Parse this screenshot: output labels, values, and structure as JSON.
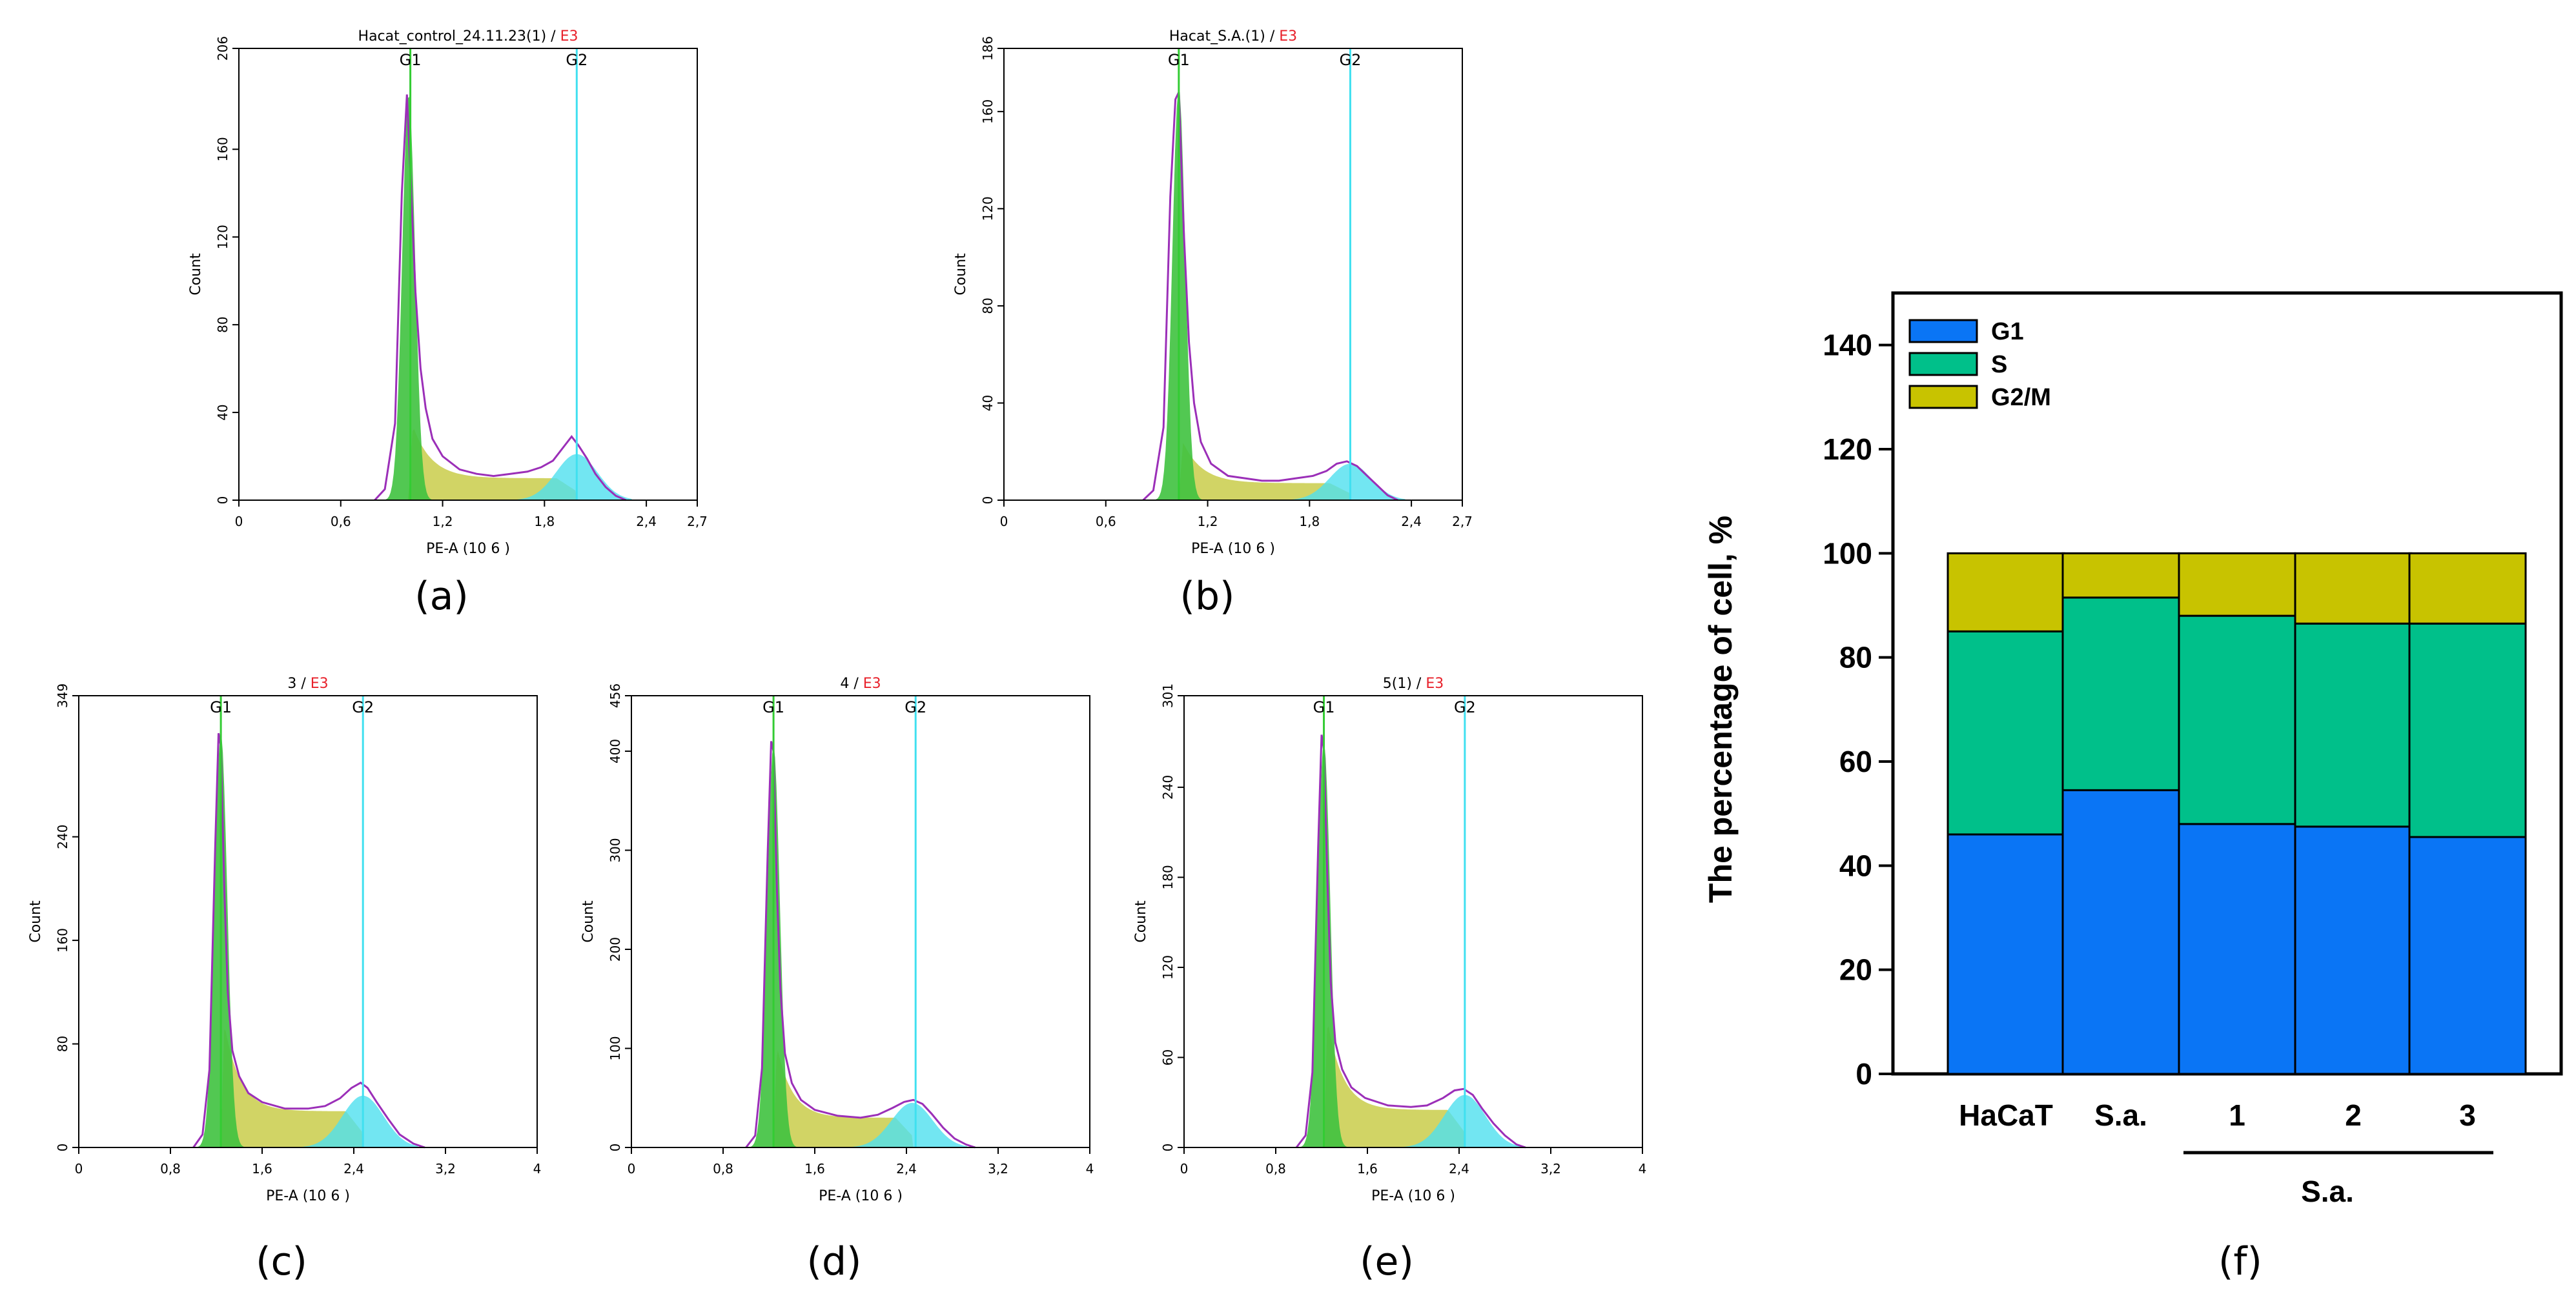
{
  "panel_labels": [
    "(a)",
    "(b)",
    "(c)",
    "(d)",
    "(e)",
    "(f)"
  ],
  "colors": {
    "G1_fill": "#3fc23f",
    "S_fill": "#c9cc4a",
    "G2_fill": "#4fe0ef",
    "envelope": "#9b2fb8",
    "G1_line": "#33cc33",
    "G2_line": "#40e0f0",
    "bar_G1": "#0a75f5",
    "bar_S": "#00c08a",
    "bar_G2M": "#c8c300"
  },
  "chart_data": [
    {
      "panel": "(a)",
      "type": "area",
      "title": "Hacat_control_24.11.23(1)",
      "title_gate": "E3",
      "xlabel": "PE-A",
      "xunit": "(10 6 )",
      "ylabel": "Count",
      "xlim": [
        0,
        2.7
      ],
      "ylim": [
        0,
        206
      ],
      "xticks": [
        "0",
        "0,6",
        "1,2",
        "1,8",
        "2,4",
        "2,7"
      ],
      "yticks": [
        "0",
        "40",
        "80",
        "120",
        "160",
        "206"
      ],
      "gates": [
        {
          "name": "G1",
          "x": 1.01
        },
        {
          "name": "G2",
          "x": 1.99
        }
      ],
      "g1_peak": 1.0,
      "g1_height": 185,
      "g2_peak": 1.99,
      "g2_height": 21,
      "s_level": 10,
      "envelope_x": [
        0.8,
        0.86,
        0.92,
        0.96,
        0.99,
        1.01,
        1.04,
        1.07,
        1.1,
        1.14,
        1.2,
        1.3,
        1.4,
        1.5,
        1.6,
        1.7,
        1.78,
        1.85,
        1.92,
        1.96,
        2.0,
        2.05,
        2.1,
        2.16,
        2.22,
        2.28
      ],
      "envelope_y": [
        0,
        5,
        35,
        140,
        185,
        150,
        95,
        60,
        42,
        28,
        20,
        14,
        12,
        11,
        12,
        13,
        15,
        18,
        25,
        29,
        25,
        19,
        12,
        6,
        2,
        0
      ]
    },
    {
      "panel": "(b)",
      "type": "area",
      "title": "Hacat_S.A.(1)",
      "title_gate": "E3",
      "xlabel": "PE-A",
      "xunit": "(10 6 )",
      "ylabel": "Count",
      "xlim": [
        0,
        2.7
      ],
      "ylim": [
        0,
        186
      ],
      "xticks": [
        "0",
        "0,6",
        "1,2",
        "1,8",
        "2,4",
        "2,7"
      ],
      "yticks": [
        "0",
        "40",
        "80",
        "120",
        "160",
        "186"
      ],
      "gates": [
        {
          "name": "G1",
          "x": 1.03
        },
        {
          "name": "G2",
          "x": 2.04
        }
      ],
      "g1_peak": 1.03,
      "g1_height": 170,
      "g2_peak": 2.04,
      "g2_height": 15,
      "s_level": 7,
      "envelope_x": [
        0.82,
        0.88,
        0.94,
        0.98,
        1.01,
        1.03,
        1.06,
        1.09,
        1.12,
        1.16,
        1.22,
        1.32,
        1.42,
        1.52,
        1.62,
        1.72,
        1.82,
        1.9,
        1.96,
        2.02,
        2.08,
        2.14,
        2.2,
        2.26,
        2.32
      ],
      "envelope_y": [
        0,
        4,
        30,
        125,
        165,
        168,
        110,
        65,
        40,
        24,
        15,
        10,
        9,
        8,
        8,
        9,
        10,
        12,
        15,
        16,
        14,
        10,
        6,
        2,
        0
      ]
    },
    {
      "panel": "(c)",
      "type": "area",
      "title": "3",
      "title_gate": "E3",
      "xlabel": "PE-A",
      "xunit": "(10 6 )",
      "ylabel": "Count",
      "xlim": [
        0,
        4
      ],
      "ylim": [
        0,
        349
      ],
      "xticks": [
        "0",
        "0,8",
        "1,6",
        "2,4",
        "3,2",
        "4"
      ],
      "yticks": [
        "0",
        "80",
        "160",
        "240",
        "349"
      ],
      "gates": [
        {
          "name": "G1",
          "x": 1.24
        },
        {
          "name": "G2",
          "x": 2.48
        }
      ],
      "g1_peak": 1.24,
      "g1_height": 320,
      "g2_peak": 2.48,
      "g2_height": 40,
      "s_level": 28,
      "envelope_x": [
        1.0,
        1.08,
        1.14,
        1.19,
        1.22,
        1.24,
        1.27,
        1.3,
        1.34,
        1.4,
        1.48,
        1.6,
        1.8,
        2.0,
        2.15,
        2.28,
        2.38,
        2.46,
        2.52,
        2.6,
        2.7,
        2.8,
        2.92,
        3.02
      ],
      "envelope_y": [
        0,
        10,
        60,
        230,
        320,
        310,
        200,
        120,
        75,
        55,
        42,
        35,
        30,
        30,
        32,
        38,
        46,
        50,
        46,
        35,
        22,
        10,
        3,
        0
      ]
    },
    {
      "panel": "(d)",
      "type": "area",
      "title": "4",
      "title_gate": "E3",
      "xlabel": "PE-A",
      "xunit": "(10 6 )",
      "ylabel": "Count",
      "xlim": [
        0,
        4
      ],
      "ylim": [
        0,
        456
      ],
      "xticks": [
        "0",
        "0,8",
        "1,6",
        "2,4",
        "3,2",
        "4"
      ],
      "yticks": [
        "0",
        "100",
        "200",
        "300",
        "400",
        "456"
      ],
      "gates": [
        {
          "name": "G1",
          "x": 1.24
        },
        {
          "name": "G2",
          "x": 2.48
        }
      ],
      "g1_peak": 1.24,
      "g1_height": 405,
      "g2_peak": 2.45,
      "g2_height": 45,
      "s_level": 30,
      "envelope_x": [
        1.0,
        1.08,
        1.14,
        1.19,
        1.22,
        1.24,
        1.27,
        1.3,
        1.34,
        1.4,
        1.48,
        1.6,
        1.8,
        2.0,
        2.15,
        2.28,
        2.38,
        2.46,
        2.54,
        2.62,
        2.72,
        2.82,
        2.92,
        3.0
      ],
      "envelope_y": [
        0,
        12,
        80,
        300,
        410,
        400,
        260,
        160,
        95,
        65,
        48,
        38,
        32,
        30,
        33,
        40,
        46,
        48,
        44,
        34,
        20,
        9,
        3,
        0
      ]
    },
    {
      "panel": "(e)",
      "type": "area",
      "title": "5(1)",
      "title_gate": "E3",
      "xlabel": "PE-A",
      "xunit": "(10 6 )",
      "ylabel": "Count",
      "xlim": [
        0,
        4
      ],
      "ylim": [
        0,
        301
      ],
      "xticks": [
        "0",
        "0,8",
        "1,6",
        "2,4",
        "3,2",
        "4"
      ],
      "yticks": [
        "0",
        "60",
        "120",
        "180",
        "240",
        "301"
      ],
      "gates": [
        {
          "name": "G1",
          "x": 1.22
        },
        {
          "name": "G2",
          "x": 2.45
        }
      ],
      "g1_peak": 1.22,
      "g1_height": 270,
      "g2_peak": 2.45,
      "g2_height": 35,
      "s_level": 25,
      "envelope_x": [
        0.98,
        1.06,
        1.12,
        1.17,
        1.2,
        1.22,
        1.25,
        1.28,
        1.32,
        1.38,
        1.46,
        1.58,
        1.78,
        1.98,
        2.12,
        2.26,
        2.36,
        2.44,
        2.52,
        2.6,
        2.7,
        2.8,
        2.9,
        2.98
      ],
      "envelope_y": [
        0,
        8,
        50,
        200,
        275,
        265,
        180,
        110,
        70,
        52,
        40,
        33,
        28,
        27,
        28,
        33,
        38,
        39,
        35,
        26,
        16,
        8,
        2,
        0
      ]
    },
    {
      "panel": "(f)",
      "type": "bar",
      "stacked": true,
      "categories": [
        "HaCaT",
        "S.a.",
        "1",
        "2",
        "3"
      ],
      "group_label": "S.a.",
      "ylabel": "The percentage of cell, %",
      "ylim": [
        0,
        150
      ],
      "yticks": [
        "0",
        "20",
        "40",
        "60",
        "80",
        "100",
        "120",
        "140"
      ],
      "legend_position": "top-left",
      "series": [
        {
          "name": "G1",
          "values": [
            46,
            54.5,
            48,
            47.5,
            45.5
          ]
        },
        {
          "name": "S",
          "values": [
            39,
            37,
            40,
            39,
            41
          ]
        },
        {
          "name": "G2/M",
          "values": [
            15,
            8.5,
            12,
            13.5,
            13.5
          ]
        }
      ]
    }
  ]
}
